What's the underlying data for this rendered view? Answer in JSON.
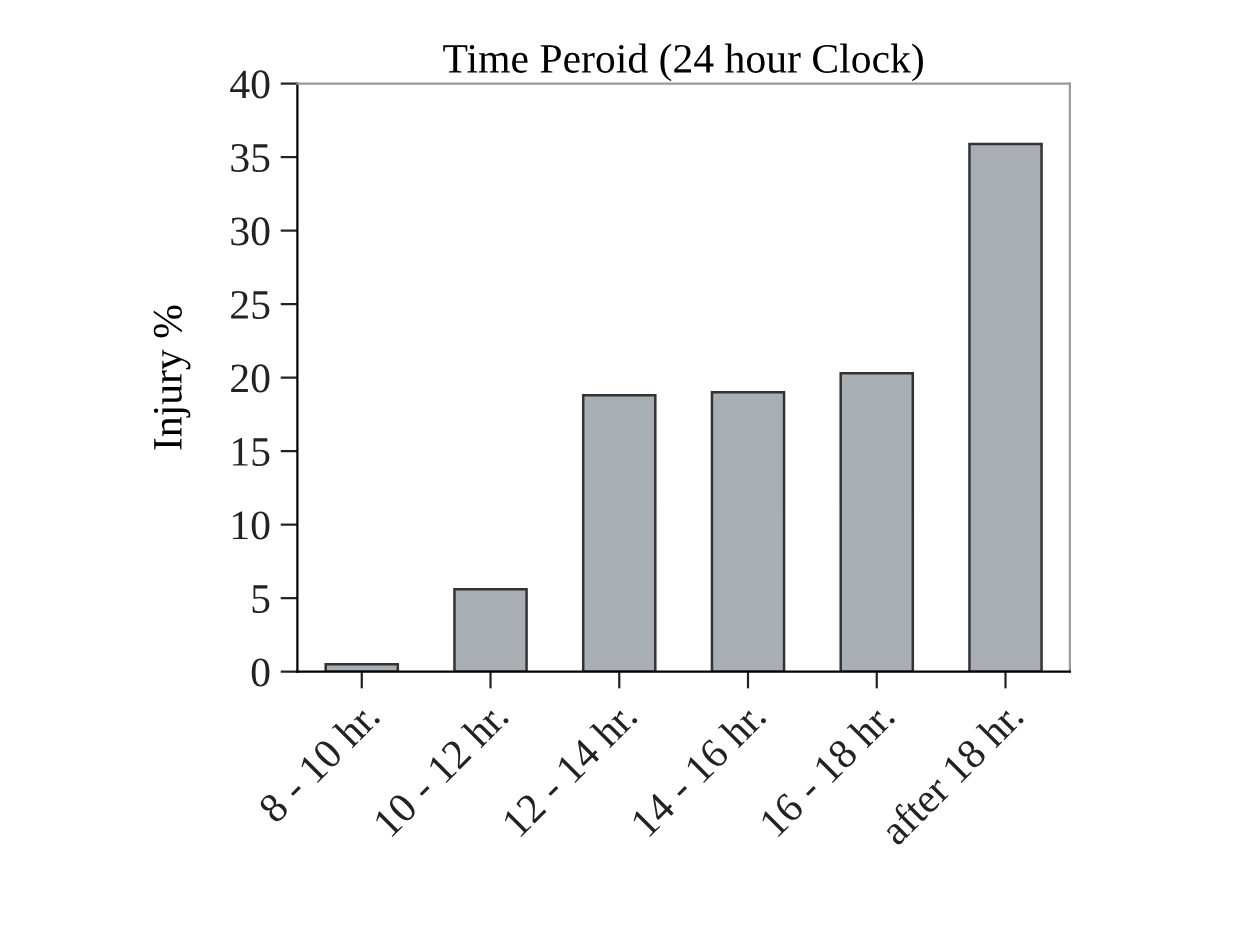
{
  "chart_data": {
    "type": "bar",
    "title": "Time Peroid (24 hour Clock)",
    "ylabel": "Injury %",
    "categories": [
      "8 - 10 hr.",
      "10 - 12 hr.",
      "12 - 14 hr.",
      "14 - 16 hr.",
      "16 - 18 hr.",
      "after 18 hr."
    ],
    "values": [
      0.5,
      5.6,
      18.8,
      19.0,
      20.3,
      35.9
    ],
    "color": "#a9aeb4",
    "ylim": [
      0,
      40
    ],
    "yticks": [
      0,
      5,
      10,
      15,
      20,
      25,
      30,
      35,
      40
    ],
    "grid": false,
    "legend": false
  }
}
